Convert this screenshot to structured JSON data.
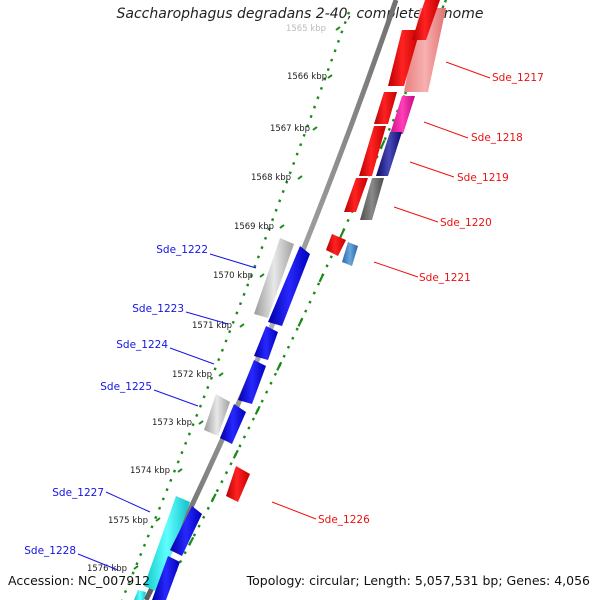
{
  "title": "Saccharophagus degradans 2-40, complete genome",
  "footer": {
    "accession": "Accession: NC_007912",
    "topology": "Topology: circular; Length: 5,057,531 bp; Genes: 4,056"
  },
  "colors": {
    "forward_strand": "#1414e6",
    "reverse_strand": "#ee1111",
    "backbone": "#8c8c8c",
    "tick_dots": "#1a8a1a",
    "other_feature": "#b8b8b8",
    "rna_feature": "#22e8e8"
  },
  "scale_labels": [
    "1565 kbp",
    "1566 kbp",
    "1567 kbp",
    "1568 kbp",
    "1569 kbp",
    "1570 kbp",
    "1571 kbp",
    "1572 kbp",
    "1573 kbp",
    "1574 kbp",
    "1575 kbp",
    "1576 kbp"
  ],
  "forward_gene_labels": [
    "Sde_1222",
    "Sde_1223",
    "Sde_1224",
    "Sde_1225",
    "Sde_1227",
    "Sde_1228"
  ],
  "reverse_gene_labels": [
    "Sde_1217",
    "Sde_1218",
    "Sde_1219",
    "Sde_1220",
    "Sde_1221",
    "Sde_1226"
  ]
}
